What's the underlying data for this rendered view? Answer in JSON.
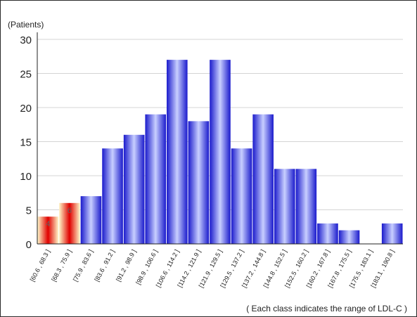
{
  "chart_data": {
    "type": "bar",
    "unit_label": "(Patients)",
    "ylim": [
      0,
      30
    ],
    "yticks": [
      0,
      5,
      10,
      15,
      20,
      25,
      30
    ],
    "grid": true,
    "categories": [
      "[60.6 , 68.3 ]",
      "[68.3 , 75.9 ]",
      "[75.9 , 83.6 ]",
      "[83.6 , 91.2 ]",
      "[91.2 , 98.9 ]",
      "[98.9 , 106.6 ]",
      "[106.6 , 114.2 ]",
      "[114.2 , 121.9 ]",
      "[121.9 , 129.5 ]",
      "[129.5 , 137.2 ]",
      "[137.2 , 144.8 ]",
      "[144.8 , 152.5 ]",
      "[152.5 , 160.2 ]",
      "[160.2 , 167.8 ]",
      "[167.8 , 175.5 ]",
      "[175.5 , 183.1 ]",
      "[183.1 , 190.8 ]"
    ],
    "values": [
      4,
      6,
      7,
      14,
      16,
      19,
      27,
      18,
      27,
      14,
      19,
      11,
      11,
      3,
      2,
      0,
      3
    ],
    "highlighted_values": [
      4,
      6
    ],
    "note": "( Each class indicates the range of LDL-C )",
    "colors": {
      "highlight": "#e00000",
      "highlight_light": "#fff6c8",
      "normal": "#1a1acc",
      "normal_light": "#c8cfff",
      "grid": "#d4d4d4",
      "axis": "#222222"
    }
  }
}
